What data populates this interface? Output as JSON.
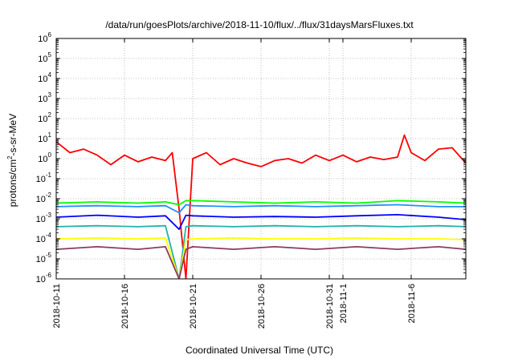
{
  "chart_data": {
    "type": "line",
    "title": "/data/run/goesPlots/archive/2018-11-10/flux/../flux/31daysMarsFluxes.txt",
    "xlabel": "Coordinated Universal Time (UTC)",
    "ylabel": "protons/cm²-s-sr-MeV",
    "ylabel_parts": [
      "protons/cm",
      "2",
      "-s-sr-MeV"
    ],
    "y_scale": "log",
    "ylim": [
      1e-06,
      1000000.0
    ],
    "y_tick_labels": [
      {
        "value": 1e-06,
        "base": "10",
        "exp": "-6"
      },
      {
        "value": 1e-05,
        "base": "10",
        "exp": "-5"
      },
      {
        "value": 0.0001,
        "base": "10",
        "exp": "-4"
      },
      {
        "value": 0.001,
        "base": "10",
        "exp": "-3"
      },
      {
        "value": 0.01,
        "base": "10",
        "exp": "-2"
      },
      {
        "value": 0.1,
        "base": "10",
        "exp": "-1"
      },
      {
        "value": 1,
        "base": "10",
        "exp": "0"
      },
      {
        "value": 10,
        "base": "10",
        "exp": "1"
      },
      {
        "value": 100,
        "base": "10",
        "exp": "2"
      },
      {
        "value": 1000,
        "base": "10",
        "exp": "3"
      },
      {
        "value": 10000,
        "base": "10",
        "exp": "4"
      },
      {
        "value": 100000,
        "base": "10",
        "exp": "5"
      },
      {
        "value": 1000000,
        "base": "10",
        "exp": "6"
      }
    ],
    "xlim": [
      "2018-10-11",
      "2018-11-10"
    ],
    "x_tick_labels": [
      {
        "date": "2018-10-11",
        "label": "2018-10-11"
      },
      {
        "date": "2018-10-16",
        "label": "2018-10-16"
      },
      {
        "date": "2018-10-21",
        "label": "2018-10-21"
      },
      {
        "date": "2018-10-26",
        "label": "2018-10-26"
      },
      {
        "date": "2018-10-31",
        "label": "2018-10-31"
      },
      {
        "date": "2018-11-01",
        "label": "2018-11-1"
      },
      {
        "date": "2018-11-06",
        "label": "2018-11-6"
      }
    ],
    "grid": true,
    "legend": "none",
    "series": [
      {
        "color": "#ff0000",
        "x": [
          "2018-10-11",
          "2018-10-12",
          "2018-10-13",
          "2018-10-14",
          "2018-10-15",
          "2018-10-16",
          "2018-10-17",
          "2018-10-18",
          "2018-10-19",
          "2018-10-19T12:00",
          "2018-10-20",
          "2018-10-20T12:00",
          "2018-10-21",
          "2018-10-22",
          "2018-10-23",
          "2018-10-24",
          "2018-10-25",
          "2018-10-26",
          "2018-10-27",
          "2018-10-28",
          "2018-10-29",
          "2018-10-30",
          "2018-10-31",
          "2018-11-01",
          "2018-11-02",
          "2018-11-03",
          "2018-11-04",
          "2018-11-05",
          "2018-11-05T12:00",
          "2018-11-06",
          "2018-11-07",
          "2018-11-08",
          "2018-11-09",
          "2018-11-10"
        ],
        "values": [
          7,
          2,
          3,
          1.5,
          0.5,
          1.5,
          0.7,
          1.2,
          0.8,
          2,
          0.003,
          1e-06,
          1,
          2,
          0.5,
          1,
          0.6,
          0.4,
          0.8,
          1,
          0.6,
          1.5,
          0.8,
          1.5,
          0.7,
          1.2,
          0.9,
          1.2,
          15,
          2,
          0.8,
          3,
          3.5,
          0.6
        ]
      },
      {
        "color": "#00ff00",
        "x": [
          "2018-10-11",
          "2018-10-14",
          "2018-10-17",
          "2018-10-19",
          "2018-10-20",
          "2018-10-20T12:00",
          "2018-10-21",
          "2018-10-24",
          "2018-10-27",
          "2018-10-30",
          "2018-11-02",
          "2018-11-05",
          "2018-11-08",
          "2018-11-10"
        ],
        "values": [
          0.006,
          0.007,
          0.006,
          0.007,
          0.005,
          0.008,
          0.008,
          0.007,
          0.006,
          0.007,
          0.006,
          0.008,
          0.007,
          0.006
        ]
      },
      {
        "color": "#1e90ff",
        "x": [
          "2018-10-11",
          "2018-10-14",
          "2018-10-17",
          "2018-10-19",
          "2018-10-20",
          "2018-10-20T12:00",
          "2018-10-21",
          "2018-10-24",
          "2018-10-27",
          "2018-10-30",
          "2018-11-02",
          "2018-11-05",
          "2018-11-08",
          "2018-11-10"
        ],
        "values": [
          0.004,
          0.0045,
          0.004,
          0.0045,
          0.002,
          0.005,
          0.0045,
          0.004,
          0.0045,
          0.004,
          0.0045,
          0.005,
          0.004,
          0.004
        ]
      },
      {
        "color": "#0000ff",
        "x": [
          "2018-10-11",
          "2018-10-14",
          "2018-10-17",
          "2018-10-19",
          "2018-10-20",
          "2018-10-20T12:00",
          "2018-10-21",
          "2018-10-24",
          "2018-10-27",
          "2018-10-30",
          "2018-11-02",
          "2018-11-05",
          "2018-11-08",
          "2018-11-10"
        ],
        "values": [
          0.0012,
          0.0015,
          0.0012,
          0.0014,
          0.0003,
          0.0015,
          0.0014,
          0.0012,
          0.0013,
          0.0012,
          0.0014,
          0.0016,
          0.0012,
          0.0009
        ]
      },
      {
        "color": "#20b2aa",
        "x": [
          "2018-10-11",
          "2018-10-14",
          "2018-10-17",
          "2018-10-19",
          "2018-10-20",
          "2018-10-20T12:00",
          "2018-10-21",
          "2018-10-24",
          "2018-10-27",
          "2018-10-30",
          "2018-11-02",
          "2018-11-05",
          "2018-11-08",
          "2018-11-10"
        ],
        "values": [
          0.0004,
          0.00045,
          0.0004,
          0.00045,
          1e-06,
          0.0004,
          0.00045,
          0.0004,
          0.00045,
          0.0004,
          0.00045,
          0.0004,
          0.00045,
          0.0004
        ]
      },
      {
        "color": "#ffff00",
        "x": [
          "2018-10-11",
          "2018-10-14",
          "2018-10-17",
          "2018-10-19",
          "2018-10-20",
          "2018-10-20T12:00",
          "2018-10-21",
          "2018-10-24",
          "2018-10-27",
          "2018-10-30",
          "2018-11-02",
          "2018-11-05",
          "2018-11-08",
          "2018-11-10"
        ],
        "values": [
          0.0001,
          0.00011,
          0.0001,
          0.00011,
          1e-06,
          9e-05,
          0.0001,
          0.00011,
          0.0001,
          0.0001,
          0.00011,
          0.0001,
          0.0001,
          9e-05
        ]
      },
      {
        "color": "#8b3a62",
        "x": [
          "2018-10-11",
          "2018-10-14",
          "2018-10-17",
          "2018-10-19",
          "2018-10-20",
          "2018-10-20T12:00",
          "2018-10-21",
          "2018-10-24",
          "2018-10-27",
          "2018-10-30",
          "2018-11-02",
          "2018-11-05",
          "2018-11-08",
          "2018-11-10"
        ],
        "values": [
          3e-05,
          4e-05,
          3e-05,
          4e-05,
          1e-06,
          3e-05,
          4e-05,
          3e-05,
          4e-05,
          3e-05,
          4e-05,
          3e-05,
          4e-05,
          3e-05
        ]
      }
    ]
  }
}
